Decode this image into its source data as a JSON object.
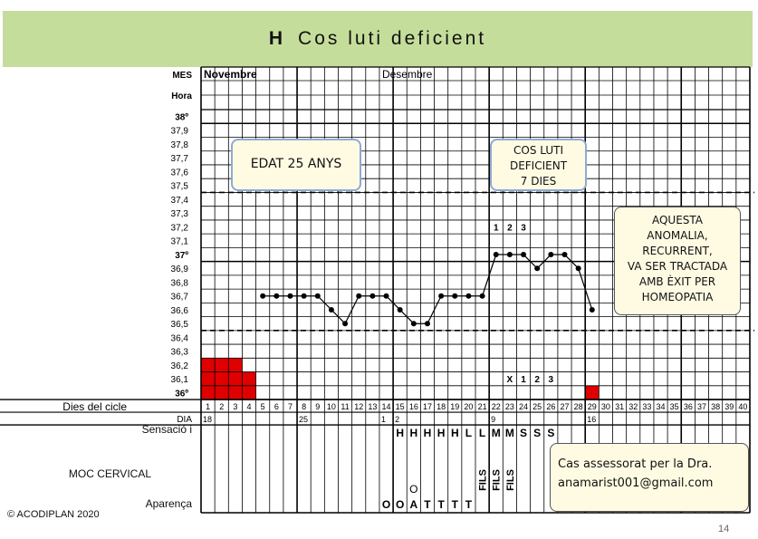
{
  "title": {
    "letter": "H",
    "text": "Cos luti deficient"
  },
  "chart_data": {
    "type": "line",
    "header_labels": {
      "mes": "MES",
      "hora": "Hora"
    },
    "months": [
      {
        "day_index": 1,
        "label": "Novembre"
      },
      {
        "day_index": 14,
        "label": "Desembre"
      }
    ],
    "temperature_ticks": [
      "38º",
      "37,9",
      "37,8",
      "37,7",
      "37,6",
      "37,5",
      "37,4",
      "37,3",
      "37,2",
      "37,1",
      "37º",
      "36,9",
      "36,8",
      "36,7",
      "36,6",
      "36,5",
      "36,4",
      "36,3",
      "36,2",
      "36,1",
      "36º"
    ],
    "temperature_values": [
      38.0,
      37.9,
      37.8,
      37.7,
      37.6,
      37.5,
      37.4,
      37.3,
      37.2,
      37.1,
      37.0,
      36.9,
      36.8,
      36.7,
      36.6,
      36.5,
      36.4,
      36.3,
      36.2,
      36.1,
      36.0
    ],
    "ylim": [
      36.0,
      38.0
    ],
    "coverline_temps": [
      37.45,
      36.45
    ],
    "bold_temps": [
      38.0,
      37.0,
      36.0
    ],
    "cycle_days": [
      1,
      2,
      3,
      4,
      5,
      6,
      7,
      8,
      9,
      10,
      11,
      12,
      13,
      14,
      15,
      16,
      17,
      18,
      19,
      20,
      21,
      22,
      23,
      24,
      25,
      26,
      27,
      28,
      29,
      30,
      31,
      32,
      33,
      34,
      35,
      36,
      37,
      38,
      39,
      40
    ],
    "temperature_series": [
      {
        "day": 5,
        "temp": 36.7
      },
      {
        "day": 6,
        "temp": 36.7
      },
      {
        "day": 7,
        "temp": 36.7
      },
      {
        "day": 8,
        "temp": 36.7
      },
      {
        "day": 9,
        "temp": 36.7
      },
      {
        "day": 10,
        "temp": 36.6
      },
      {
        "day": 11,
        "temp": 36.5
      },
      {
        "day": 12,
        "temp": 36.7
      },
      {
        "day": 13,
        "temp": 36.7
      },
      {
        "day": 14,
        "temp": 36.7
      },
      {
        "day": 15,
        "temp": 36.6
      },
      {
        "day": 16,
        "temp": 36.5
      },
      {
        "day": 17,
        "temp": 36.5
      },
      {
        "day": 18,
        "temp": 36.7
      },
      {
        "day": 19,
        "temp": 36.7
      },
      {
        "day": 20,
        "temp": 36.7
      },
      {
        "day": 21,
        "temp": 36.7
      },
      {
        "day": 22,
        "temp": 37.0
      },
      {
        "day": 23,
        "temp": 37.0
      },
      {
        "day": 24,
        "temp": 37.0
      },
      {
        "day": 25,
        "temp": 36.9
      },
      {
        "day": 26,
        "temp": 37.0
      },
      {
        "day": 27,
        "temp": 37.0
      },
      {
        "day": 28,
        "temp": 36.9
      },
      {
        "day": 29,
        "temp": 36.6
      }
    ],
    "menstruation": [
      {
        "day": 1,
        "cells": 3
      },
      {
        "day": 2,
        "cells": 3
      },
      {
        "day": 3,
        "cells": 3
      },
      {
        "day": 4,
        "cells": 2
      },
      {
        "day": 29,
        "cells": 1
      }
    ],
    "markers_high": [
      {
        "day": 22,
        "text": "1"
      },
      {
        "day": 23,
        "text": "2"
      },
      {
        "day": 24,
        "text": "3"
      }
    ],
    "markers_low": [
      {
        "day": 23,
        "text": "X"
      },
      {
        "day": 24,
        "text": "1"
      },
      {
        "day": 25,
        "text": "2"
      },
      {
        "day": 26,
        "text": "3"
      }
    ],
    "row_labels": {
      "dies_cicle": "Dies del cicle",
      "dia": "DIA",
      "sensacio": "Sensació i",
      "moc": "MOC  CERVICAL",
      "aparenca": "Aparença"
    },
    "dates": [
      {
        "day": 1,
        "text": "18"
      },
      {
        "day": 8,
        "text": "25"
      },
      {
        "day": 14,
        "text": "1"
      },
      {
        "day": 15,
        "text": "2"
      },
      {
        "day": 22,
        "text": "9"
      },
      {
        "day": 29,
        "text": "16"
      }
    ],
    "sensacio": [
      {
        "day": 15,
        "text": "H"
      },
      {
        "day": 16,
        "text": "H"
      },
      {
        "day": 17,
        "text": "H"
      },
      {
        "day": 18,
        "text": "H"
      },
      {
        "day": 19,
        "text": "H"
      },
      {
        "day": 20,
        "text": "L"
      },
      {
        "day": 21,
        "text": "L"
      },
      {
        "day": 22,
        "text": "M"
      },
      {
        "day": 23,
        "text": "M"
      },
      {
        "day": 24,
        "text": "S"
      },
      {
        "day": 25,
        "text": "S"
      },
      {
        "day": 26,
        "text": "S"
      }
    ],
    "fils": [
      {
        "day": 21,
        "text": "FILS"
      },
      {
        "day": 22,
        "text": "FILS"
      },
      {
        "day": 23,
        "text": "FILS"
      }
    ],
    "aparenca_mid": [
      {
        "day": 16,
        "text": "O"
      }
    ],
    "aparenca": [
      {
        "day": 14,
        "text": "O"
      },
      {
        "day": 15,
        "text": "O"
      },
      {
        "day": 16,
        "text": "A"
      },
      {
        "day": 17,
        "text": "T"
      },
      {
        "day": 18,
        "text": "T"
      },
      {
        "day": 19,
        "text": "T"
      },
      {
        "day": 20,
        "text": "T"
      }
    ]
  },
  "annotations": {
    "age": "EDAT  25 ANYS",
    "luti_lines": [
      "COS LUTI",
      "DEFICIENT",
      "7 DIES"
    ],
    "note_lines": [
      "AQUESTA",
      "ANOMALIA,",
      "RECURRENT,",
      "VA SER TRACTADA",
      "AMB ÈXIT PER",
      "HOMEOPATIA"
    ],
    "contact_lines": [
      "Cas assessorat per la Dra.",
      "anamarist001@gmail.com"
    ]
  },
  "footer": {
    "copyright": "© ACODIPLAN 2020",
    "page": "14"
  }
}
